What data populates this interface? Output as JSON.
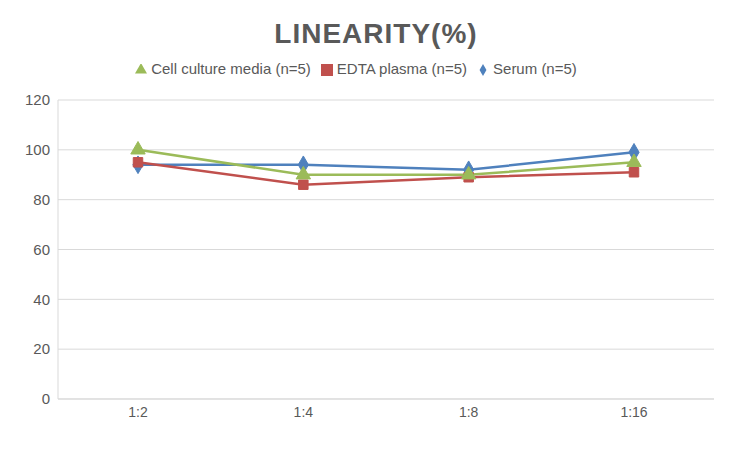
{
  "chart_data": {
    "type": "line",
    "title": "LINEARITY(%)",
    "categories": [
      "1:2",
      "1:4",
      "1:8",
      "1:16"
    ],
    "series": [
      {
        "name": "Serum (n=5)",
        "color": "#4f81bd",
        "marker": "diamond",
        "values": [
          94,
          94,
          92,
          99
        ]
      },
      {
        "name": "EDTA plasma (n=5)",
        "color": "#c0504d",
        "marker": "square",
        "values": [
          95,
          86,
          89,
          91
        ]
      },
      {
        "name": "Cell culture media (n=5)",
        "color": "#9bbb59",
        "marker": "triangle",
        "values": [
          100,
          90,
          90,
          95
        ]
      }
    ],
    "ylim": [
      0,
      120
    ],
    "yticks": [
      0,
      20,
      40,
      60,
      80,
      100,
      120
    ],
    "grid": true,
    "legend": "top"
  }
}
